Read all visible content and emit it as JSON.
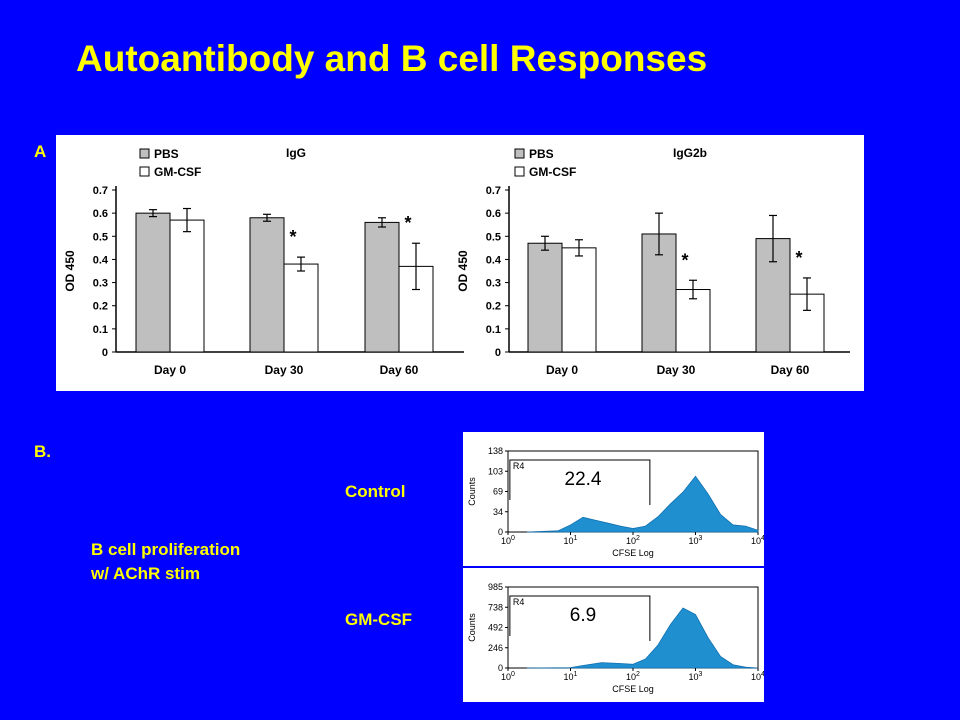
{
  "slide": {
    "title": "Autoantibody and B cell Responses",
    "label_a": "A",
    "label_b": "B.",
    "proliferation_line1": "B cell proliferation",
    "proliferation_line2": "w/ AChR stim",
    "control_label": "Control",
    "gmcsf_label": "GM-CSF"
  },
  "colors": {
    "background": "#0000ff",
    "title": "#ffff00",
    "pbs_bar": "#bfbfbf",
    "gmcsf_bar": "#ffffff",
    "histogram": "#1f8fd0"
  },
  "chart_data": [
    {
      "type": "bar",
      "title": "IgG",
      "categories": [
        "Day 0",
        "Day 30",
        "Day 60"
      ],
      "ylabel": "OD 450",
      "ylim": [
        0,
        0.7
      ],
      "yticks": [
        "0",
        "0.1",
        "0.2",
        "0.3",
        "0.4",
        "0.5",
        "0.6",
        "0.7"
      ],
      "legend_position": "top-left",
      "series": [
        {
          "name": "PBS",
          "values": [
            0.6,
            0.58,
            0.56
          ],
          "errors": [
            0.015,
            0.015,
            0.02
          ],
          "color": "#bfbfbf"
        },
        {
          "name": "GM-CSF",
          "values": [
            0.57,
            0.38,
            0.37
          ],
          "errors": [
            0.05,
            0.03,
            0.1
          ],
          "color": "#ffffff"
        }
      ],
      "annotations": [
        {
          "text": "*",
          "category": "Day 30",
          "series": "GM-CSF"
        },
        {
          "text": "*",
          "category": "Day 60",
          "series": "GM-CSF"
        }
      ]
    },
    {
      "type": "bar",
      "title": "IgG2b",
      "categories": [
        "Day 0",
        "Day 30",
        "Day 60"
      ],
      "ylabel": "OD 450",
      "ylim": [
        0,
        0.7
      ],
      "yticks": [
        "0",
        "0.1",
        "0.2",
        "0.3",
        "0.4",
        "0.5",
        "0.6",
        "0.7"
      ],
      "legend_position": "top-left",
      "series": [
        {
          "name": "PBS",
          "values": [
            0.47,
            0.51,
            0.49
          ],
          "errors": [
            0.03,
            0.09,
            0.1
          ],
          "color": "#bfbfbf"
        },
        {
          "name": "GM-CSF",
          "values": [
            0.45,
            0.27,
            0.25
          ],
          "errors": [
            0.035,
            0.04,
            0.07
          ],
          "color": "#ffffff"
        }
      ],
      "annotations": [
        {
          "text": "*",
          "category": "Day 30",
          "series": "GM-CSF"
        },
        {
          "text": "*",
          "category": "Day 60",
          "series": "GM-CSF"
        }
      ]
    },
    {
      "type": "area",
      "name": "Control",
      "xlabel": "CFSE Log",
      "ylabel": "Counts",
      "ylim": [
        0,
        138
      ],
      "yticks": [
        "0",
        "34",
        "69",
        "103",
        "138"
      ],
      "xticks": [
        "10",
        "10",
        "10",
        "10",
        "10"
      ],
      "xtick_exponents": [
        "0",
        "1",
        "2",
        "3",
        "4"
      ],
      "gate_label": "R4",
      "gate_value": "22.4",
      "x": [
        0.3,
        0.8,
        1.0,
        1.2,
        1.4,
        1.6,
        1.8,
        2.0,
        2.2,
        2.4,
        2.6,
        2.8,
        3.0,
        3.2,
        3.4,
        3.6,
        3.8,
        4.0
      ],
      "y": [
        0,
        2,
        12,
        25,
        20,
        15,
        10,
        6,
        10,
        26,
        48,
        68,
        95,
        65,
        30,
        12,
        10,
        3
      ]
    },
    {
      "type": "area",
      "name": "GM-CSF",
      "xlabel": "CFSE Log",
      "ylabel": "Counts",
      "ylim": [
        0,
        985
      ],
      "yticks": [
        "0",
        "246",
        "492",
        "738",
        "985"
      ],
      "xticks": [
        "10",
        "10",
        "10",
        "10",
        "10"
      ],
      "xtick_exponents": [
        "0",
        "1",
        "2",
        "3",
        "4"
      ],
      "gate_label": "R4",
      "gate_value": "6.9",
      "x": [
        0.3,
        1.0,
        1.2,
        1.5,
        1.8,
        2.0,
        2.2,
        2.4,
        2.6,
        2.8,
        3.0,
        3.2,
        3.4,
        3.6,
        3.8,
        4.0
      ],
      "y": [
        0,
        5,
        30,
        65,
        55,
        45,
        110,
        280,
        530,
        730,
        650,
        370,
        140,
        40,
        10,
        0
      ]
    }
  ]
}
